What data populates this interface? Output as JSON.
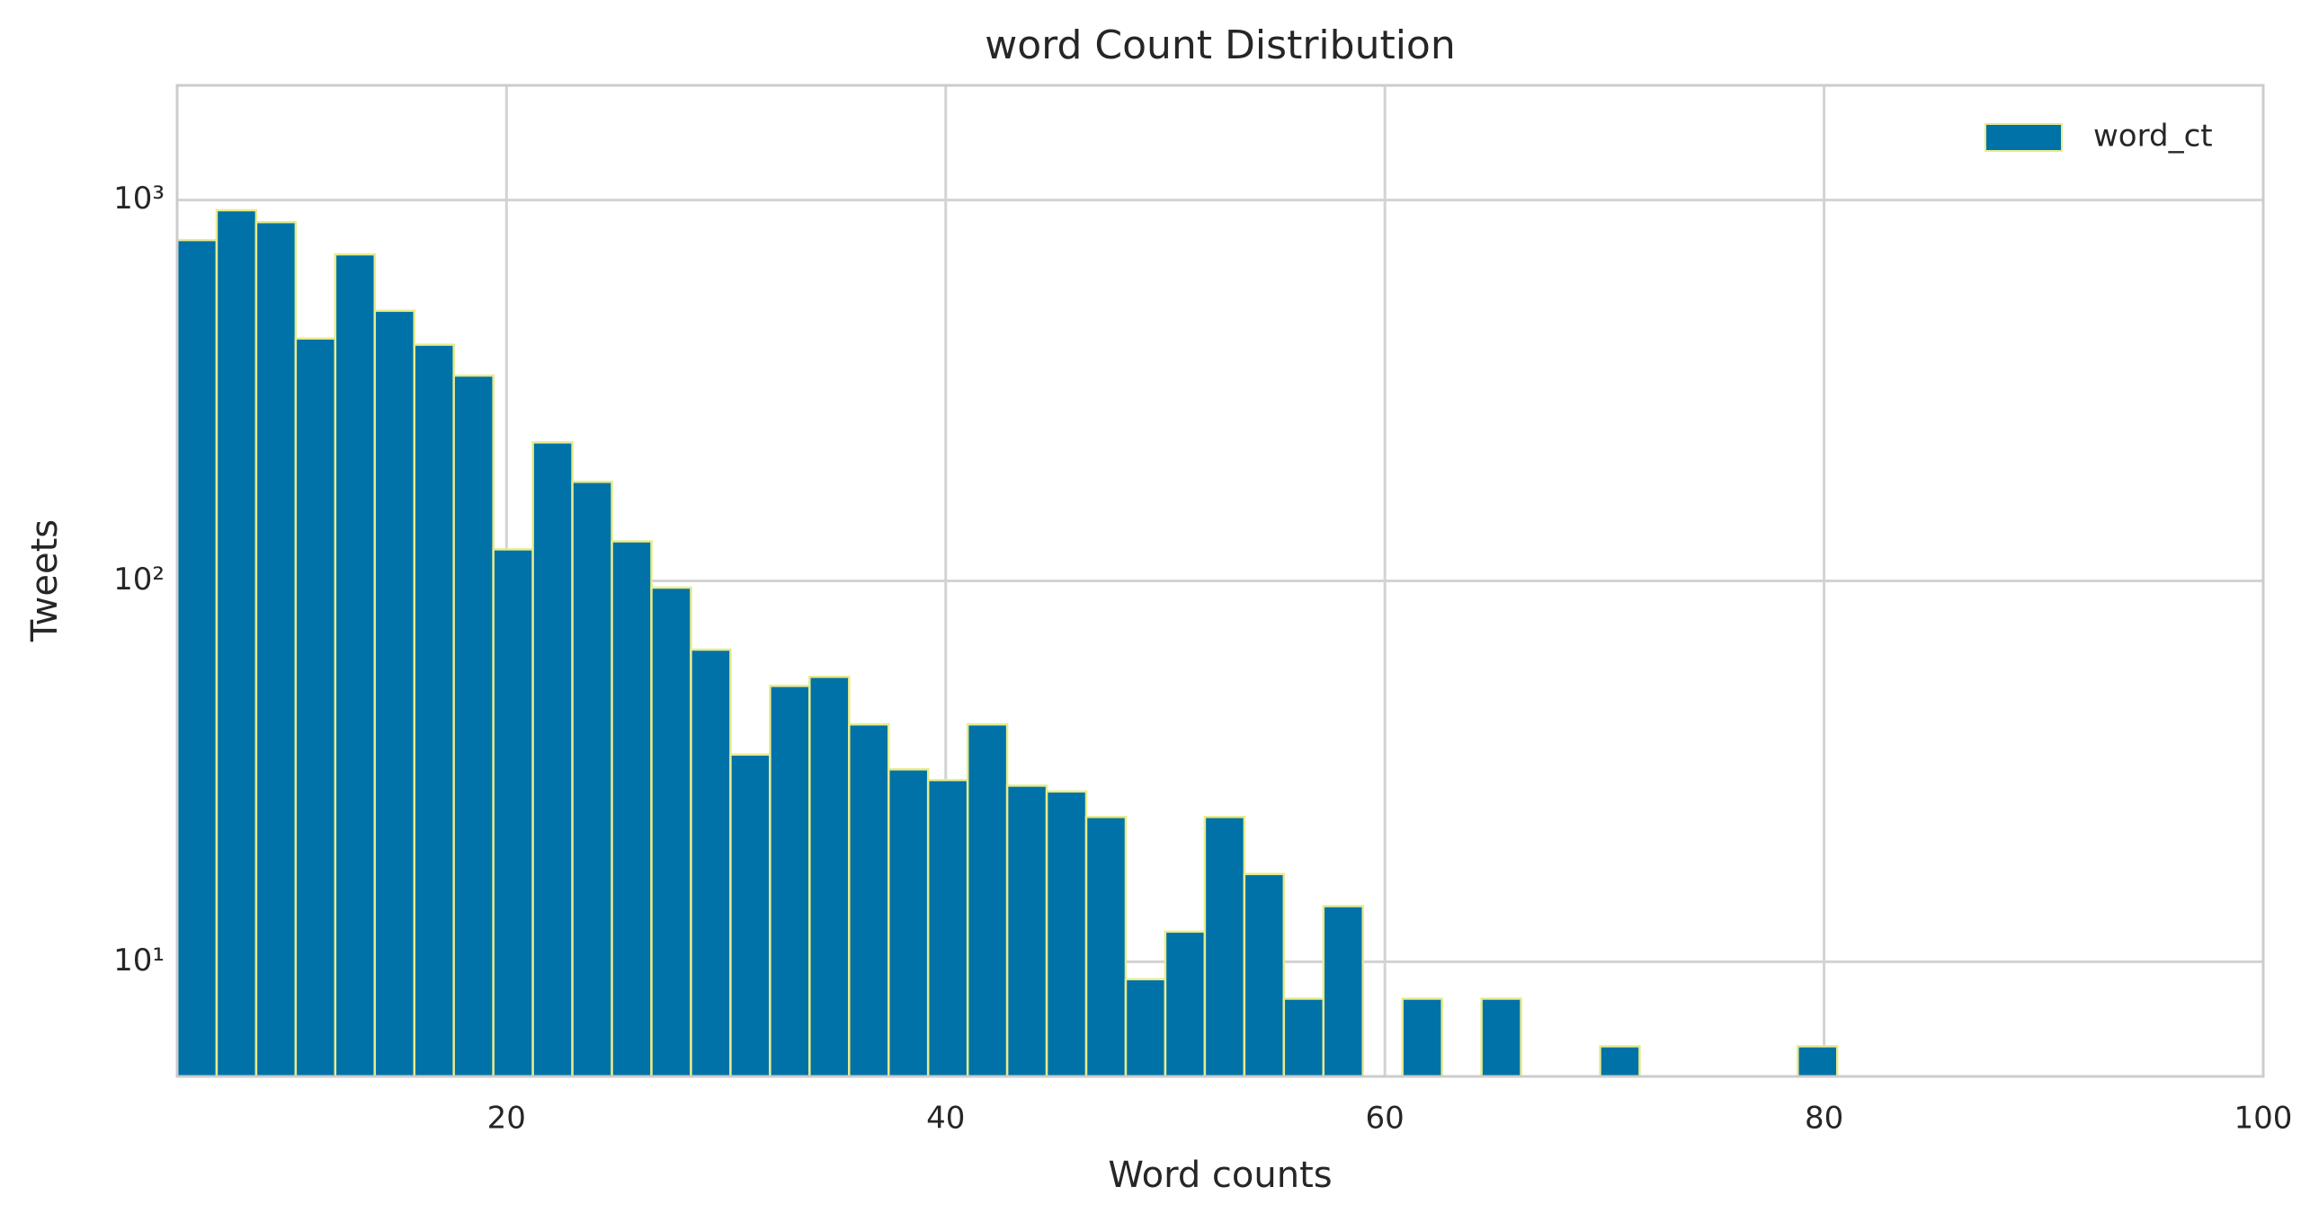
{
  "chart_data": {
    "type": "histogram",
    "title": "word Count Distribution",
    "x_label": "Word counts",
    "y_label": "Tweets",
    "bins": [
      5,
      6.8,
      8.6,
      10.4,
      12.2,
      14,
      15.8,
      17.6,
      19.4,
      21.2,
      23,
      24.8,
      26.6,
      28.4,
      30.2,
      32,
      33.8,
      35.6,
      37.4,
      39.2,
      41,
      42.8,
      44.6,
      46.4,
      48.2,
      50,
      51.8,
      53.6,
      55.4,
      57.2,
      59,
      60.8,
      62.6,
      64.4,
      66.2,
      68,
      69.8,
      71.6,
      73.4,
      75.2,
      77,
      78.8,
      80.6,
      82.4,
      84.2,
      86,
      87.8,
      89.6,
      91.4,
      93.2,
      95
    ],
    "series": [
      {
        "name": "word_ct",
        "color": "#0072a7",
        "edge_color": "#e8eb8c",
        "values": [
          785,
          940,
          875,
          433,
          720,
          512,
          417,
          346,
          121,
          231,
          182,
          127,
          96,
          66,
          35,
          53,
          56,
          42,
          32,
          30,
          42,
          29,
          28,
          24,
          9,
          12,
          24,
          17,
          8,
          14,
          0,
          8,
          0,
          8,
          0,
          0,
          6,
          0,
          0,
          0,
          0,
          6,
          0,
          0,
          0,
          0,
          0,
          0,
          0,
          0
        ]
      }
    ],
    "xlim": [
      5,
      100
    ],
    "xticks": [
      20,
      40,
      60,
      80,
      100
    ],
    "ylim": [
      5,
      2000
    ],
    "y_scale": "log",
    "yticks": [
      {
        "value": 10,
        "label": "10¹"
      },
      {
        "value": 100,
        "label": "10²"
      },
      {
        "value": 1000,
        "label": "10³"
      }
    ],
    "grid": true,
    "legend_position": "upper right"
  }
}
